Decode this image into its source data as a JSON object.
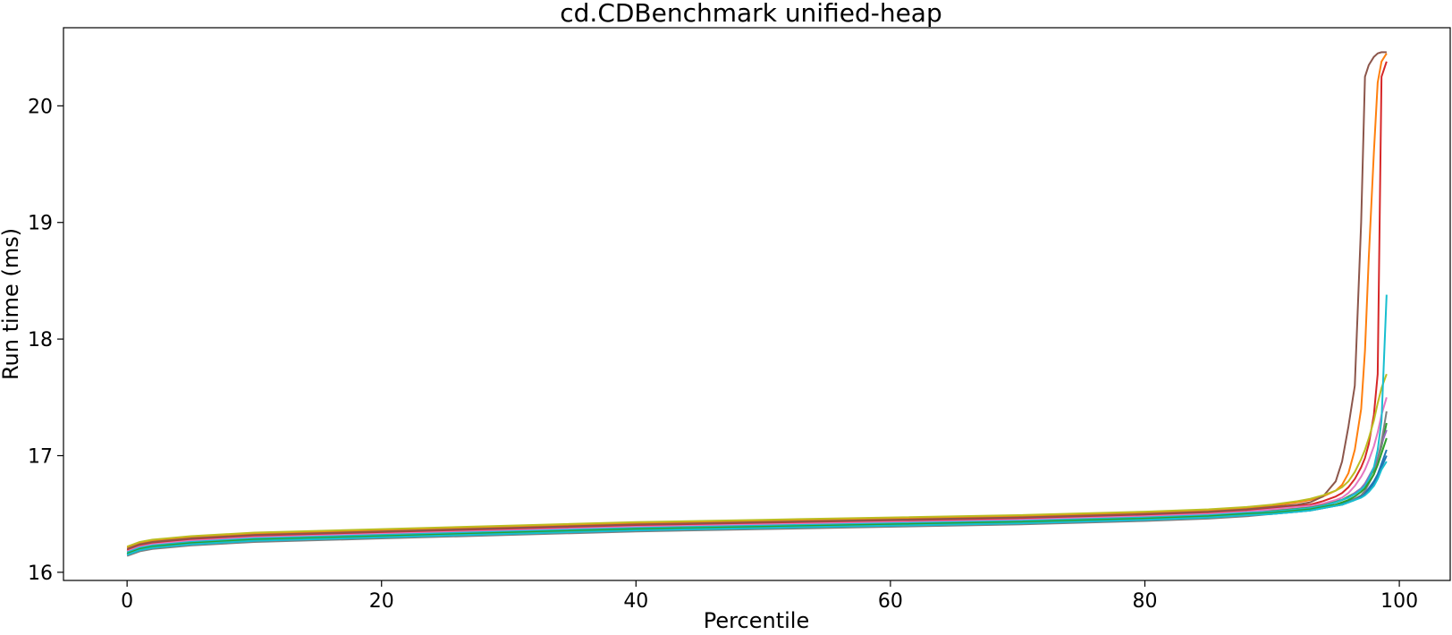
{
  "chart_data": {
    "type": "line",
    "title": "cd.CDBenchmark unified-heap",
    "xlabel": "Percentile",
    "ylabel": "Run time (ms)",
    "xlim": [
      -5,
      104
    ],
    "ylim": [
      15.93,
      20.67
    ],
    "xticks": [
      0,
      20,
      40,
      60,
      80,
      100
    ],
    "yticks": [
      16,
      17,
      18,
      19,
      20
    ],
    "grid": false,
    "legend": "none",
    "x": [
      0,
      1,
      2,
      3,
      5,
      10,
      20,
      30,
      40,
      50,
      60,
      70,
      80,
      85,
      88,
      90,
      92,
      93,
      94,
      95,
      95.5,
      96,
      96.5,
      97,
      97.3,
      97.6,
      98,
      98.3,
      98.6,
      99
    ],
    "series": [
      {
        "color": "#1f77b4",
        "values": [
          16.16,
          16.2,
          16.22,
          16.23,
          16.25,
          16.28,
          16.31,
          16.34,
          16.37,
          16.39,
          16.41,
          16.43,
          16.46,
          16.48,
          16.5,
          16.51,
          16.53,
          16.54,
          16.56,
          16.58,
          16.59,
          16.61,
          16.63,
          16.66,
          16.68,
          16.72,
          16.78,
          16.84,
          16.93,
          17.05
        ]
      },
      {
        "color": "#ff7f0e",
        "values": [
          16.21,
          16.25,
          16.27,
          16.28,
          16.3,
          16.33,
          16.36,
          16.39,
          16.42,
          16.44,
          16.46,
          16.48,
          16.51,
          16.53,
          16.55,
          16.57,
          16.6,
          16.62,
          16.65,
          16.7,
          16.75,
          16.85,
          17.05,
          17.4,
          17.9,
          18.7,
          19.6,
          20.2,
          20.38,
          20.45
        ]
      },
      {
        "color": "#2ca02c",
        "values": [
          16.18,
          16.22,
          16.24,
          16.25,
          16.27,
          16.3,
          16.33,
          16.36,
          16.39,
          16.41,
          16.43,
          16.45,
          16.48,
          16.5,
          16.52,
          16.53,
          16.55,
          16.56,
          16.58,
          16.61,
          16.62,
          16.65,
          16.68,
          16.72,
          16.76,
          16.8,
          16.88,
          16.97,
          17.08,
          17.28
        ]
      },
      {
        "color": "#d62728",
        "values": [
          16.19,
          16.23,
          16.25,
          16.26,
          16.28,
          16.31,
          16.34,
          16.37,
          16.4,
          16.42,
          16.44,
          16.46,
          16.49,
          16.51,
          16.53,
          16.55,
          16.57,
          16.58,
          16.61,
          16.65,
          16.68,
          16.73,
          16.8,
          16.9,
          16.98,
          17.1,
          17.35,
          17.7,
          20.25,
          20.38
        ]
      },
      {
        "color": "#9467bd",
        "values": [
          16.17,
          16.21,
          16.23,
          16.24,
          16.26,
          16.29,
          16.32,
          16.35,
          16.38,
          16.4,
          16.42,
          16.44,
          16.47,
          16.49,
          16.51,
          16.52,
          16.54,
          16.55,
          16.57,
          16.6,
          16.62,
          16.64,
          16.68,
          16.72,
          16.76,
          16.82,
          16.9,
          16.98,
          17.1,
          17.22
        ]
      },
      {
        "color": "#8c564b",
        "values": [
          16.2,
          16.24,
          16.26,
          16.27,
          16.29,
          16.32,
          16.35,
          16.38,
          16.41,
          16.43,
          16.45,
          16.47,
          16.5,
          16.52,
          16.54,
          16.56,
          16.58,
          16.6,
          16.65,
          16.78,
          16.95,
          17.25,
          17.6,
          19.0,
          20.25,
          20.35,
          20.42,
          20.45,
          20.46,
          20.46
        ]
      },
      {
        "color": "#e377c2",
        "values": [
          16.18,
          16.22,
          16.24,
          16.25,
          16.27,
          16.3,
          16.33,
          16.36,
          16.39,
          16.41,
          16.43,
          16.45,
          16.48,
          16.5,
          16.52,
          16.54,
          16.56,
          16.57,
          16.59,
          16.62,
          16.64,
          16.68,
          16.74,
          16.82,
          16.88,
          16.96,
          17.08,
          17.2,
          17.35,
          17.5
        ]
      },
      {
        "color": "#7f7f7f",
        "values": [
          16.14,
          16.18,
          16.2,
          16.21,
          16.23,
          16.26,
          16.29,
          16.32,
          16.35,
          16.37,
          16.39,
          16.41,
          16.44,
          16.46,
          16.48,
          16.5,
          16.52,
          16.53,
          16.55,
          16.57,
          16.58,
          16.6,
          16.63,
          16.66,
          16.7,
          16.76,
          16.84,
          16.96,
          17.12,
          17.38
        ]
      },
      {
        "color": "#bcbd22",
        "values": [
          16.22,
          16.26,
          16.28,
          16.29,
          16.31,
          16.34,
          16.37,
          16.4,
          16.43,
          16.45,
          16.47,
          16.49,
          16.52,
          16.54,
          16.56,
          16.58,
          16.61,
          16.63,
          16.66,
          16.7,
          16.73,
          16.78,
          16.86,
          16.97,
          17.05,
          17.15,
          17.3,
          17.45,
          17.58,
          17.7
        ]
      },
      {
        "color": "#17becf",
        "values": [
          16.17,
          16.21,
          16.23,
          16.24,
          16.26,
          16.29,
          16.32,
          16.35,
          16.38,
          16.4,
          16.42,
          16.44,
          16.47,
          16.49,
          16.51,
          16.52,
          16.54,
          16.55,
          16.57,
          16.6,
          16.62,
          16.64,
          16.67,
          16.71,
          16.74,
          16.8,
          16.9,
          17.05,
          17.3,
          18.38
        ]
      },
      {
        "color": "#1f77b4",
        "values": [
          16.15,
          16.19,
          16.21,
          16.22,
          16.24,
          16.27,
          16.3,
          16.33,
          16.36,
          16.38,
          16.4,
          16.42,
          16.45,
          16.47,
          16.49,
          16.5,
          16.52,
          16.53,
          16.55,
          16.57,
          16.58,
          16.6,
          16.62,
          16.65,
          16.67,
          16.7,
          16.76,
          16.82,
          16.9,
          17.0
        ]
      },
      {
        "color": "#2ca02c",
        "values": [
          16.16,
          16.2,
          16.22,
          16.23,
          16.25,
          16.28,
          16.31,
          16.34,
          16.37,
          16.39,
          16.41,
          16.43,
          16.46,
          16.48,
          16.5,
          16.51,
          16.53,
          16.54,
          16.56,
          16.58,
          16.6,
          16.62,
          16.65,
          16.69,
          16.72,
          16.77,
          16.84,
          16.92,
          17.02,
          17.15
        ]
      },
      {
        "color": "#17becf",
        "values": [
          16.15,
          16.19,
          16.21,
          16.22,
          16.24,
          16.27,
          16.3,
          16.33,
          16.36,
          16.38,
          16.4,
          16.42,
          16.45,
          16.47,
          16.49,
          16.5,
          16.52,
          16.53,
          16.55,
          16.57,
          16.58,
          16.6,
          16.62,
          16.64,
          16.66,
          16.69,
          16.74,
          16.8,
          16.88,
          16.95
        ]
      }
    ]
  }
}
